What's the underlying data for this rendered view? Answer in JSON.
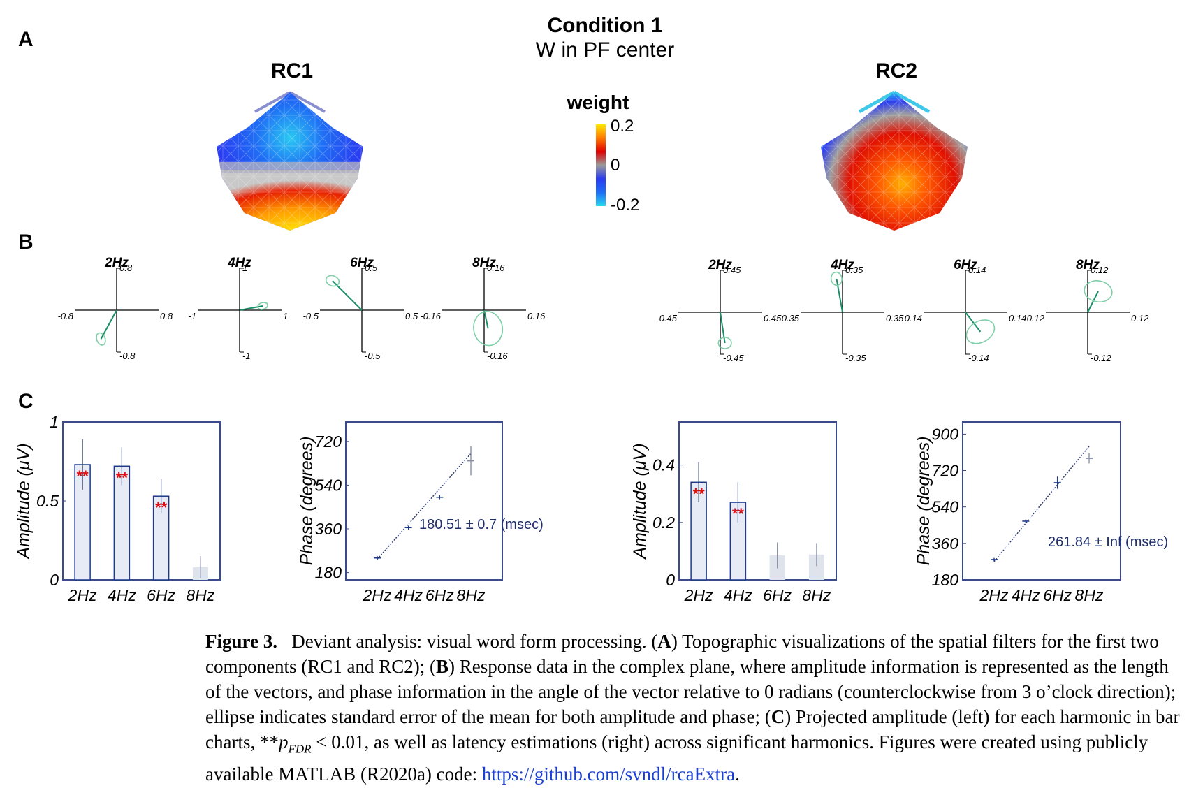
{
  "panel_labels": [
    "A",
    "B",
    "C"
  ],
  "header": {
    "title": "Condition 1",
    "subtitle": "W in PF center"
  },
  "topos": [
    {
      "label": "RC1",
      "pattern": "blue-frontal-red-occipital"
    },
    {
      "label": "RC2",
      "pattern": "red-central-blue-rim"
    }
  ],
  "colorbar": {
    "title": "weight",
    "ticks": [
      "0.2",
      "0",
      "-0.2"
    ],
    "colors": [
      "#ffe800",
      "#ff7a00",
      "#e00000",
      "#9a9a9a",
      "#2a3cf0",
      "#1f6ff5",
      "#29d8f2"
    ]
  },
  "chart_data": [
    {
      "type": "scatter",
      "group": "RC1",
      "title": "2Hz",
      "xlim": [
        -0.8,
        0.8
      ],
      "ylim": [
        -0.8,
        0.8
      ],
      "ticks": {
        "xmin": "-0.8",
        "xmax": "0.8",
        "ymax": "0.8",
        "ymin": "-0.8"
      },
      "vector": {
        "x": -0.3,
        "y": -0.55
      },
      "ellipse": {
        "rx": 0.08,
        "ry": 0.12,
        "angle": -20
      }
    },
    {
      "type": "scatter",
      "group": "RC1",
      "title": "4Hz",
      "xlim": [
        -1,
        1
      ],
      "ylim": [
        -1,
        1
      ],
      "ticks": {
        "xmin": "-1",
        "xmax": "1",
        "ymax": "1",
        "ymin": "-1"
      },
      "vector": {
        "x": 0.55,
        "y": 0.1
      },
      "ellipse": {
        "rx": 0.12,
        "ry": 0.08,
        "angle": -15
      }
    },
    {
      "type": "scatter",
      "group": "RC1",
      "title": "6Hz",
      "xlim": [
        -0.5,
        0.5
      ],
      "ylim": [
        -0.5,
        0.5
      ],
      "ticks": {
        "xmin": "-0.5",
        "xmax": "0.5",
        "ymax": "0.5",
        "ymin": "-0.5"
      },
      "vector": {
        "x": -0.35,
        "y": 0.35
      },
      "ellipse": {
        "rx": 0.08,
        "ry": 0.06,
        "angle": 20
      }
    },
    {
      "type": "scatter",
      "group": "RC1",
      "title": "8Hz",
      "xlim": [
        -0.16,
        0.16
      ],
      "ylim": [
        -0.16,
        0.16
      ],
      "ticks": {
        "xmin": "-0.16",
        "xmax": "0.16",
        "ymax": "0.16",
        "ymin": "-0.16"
      },
      "vector": {
        "x": 0.015,
        "y": -0.07
      },
      "ellipse": {
        "rx": 0.055,
        "ry": 0.065,
        "angle": -10
      }
    },
    {
      "type": "scatter",
      "group": "RC2",
      "title": "2Hz",
      "xlim": [
        -0.45,
        0.45
      ],
      "ylim": [
        -0.45,
        0.45
      ],
      "ticks": {
        "xmin": "-0.45",
        "xmax": "0.45",
        "ymax": "0.45",
        "ymin": "-0.45"
      },
      "vector": {
        "x": 0.05,
        "y": -0.33
      },
      "ellipse": {
        "rx": 0.07,
        "ry": 0.06,
        "angle": 0
      }
    },
    {
      "type": "scatter",
      "group": "RC2",
      "title": "4Hz",
      "xlim": [
        -0.35,
        0.35
      ],
      "ylim": [
        -0.35,
        0.35
      ],
      "ticks": {
        "xmin": "-0.35",
        "xmax": "0.35",
        "ymax": "0.35",
        "ymin": "-0.35"
      },
      "vector": {
        "x": -0.05,
        "y": 0.28
      },
      "ellipse": {
        "rx": 0.045,
        "ry": 0.055,
        "angle": -10
      }
    },
    {
      "type": "scatter",
      "group": "RC2",
      "title": "6Hz",
      "xlim": [
        -0.14,
        0.14
      ],
      "ylim": [
        -0.14,
        0.14
      ],
      "ticks": {
        "xmin": "-0.14",
        "xmax": "0.14",
        "ymax": "0.14",
        "ymin": "-0.14"
      },
      "vector": {
        "x": 0.05,
        "y": -0.065
      },
      "ellipse": {
        "rx": 0.05,
        "ry": 0.035,
        "angle": -30
      }
    },
    {
      "type": "scatter",
      "group": "RC2",
      "title": "8Hz",
      "xlim": [
        -0.12,
        0.12
      ],
      "ylim": [
        -0.12,
        0.12
      ],
      "ticks": {
        "xmin": "-0.12",
        "xmax": "0.12",
        "ymax": "0.12",
        "ymin": "-0.12"
      },
      "vector": {
        "x": 0.03,
        "y": 0.06
      },
      "ellipse": {
        "rx": 0.04,
        "ry": 0.03,
        "angle": 10
      }
    },
    {
      "type": "bar",
      "group": "RC1",
      "categories": [
        "2Hz",
        "4Hz",
        "6Hz",
        "8Hz"
      ],
      "values": [
        0.73,
        0.72,
        0.53,
        0.08
      ],
      "errors": [
        0.16,
        0.12,
        0.11,
        0.07
      ],
      "significant": [
        true,
        true,
        true,
        false
      ],
      "sig_marker": "**",
      "ylabel": "Amplitude (μV)",
      "ylim": [
        0,
        1
      ],
      "yticks": [
        "0",
        "0.5",
        "1"
      ],
      "ytick_values": [
        0,
        0.5,
        1
      ]
    },
    {
      "type": "line",
      "group": "RC1",
      "categories": [
        "2Hz",
        "4Hz",
        "6Hz",
        "8Hz"
      ],
      "values": [
        240,
        365,
        490,
        640
      ],
      "errors": [
        8,
        8,
        8,
        60
      ],
      "fit": [
        235,
        670
      ],
      "ylabel": "Phase (degrees)",
      "ylim": [
        150,
        800
      ],
      "yticks": [
        "180",
        "360",
        "540",
        "720"
      ],
      "ytick_values": [
        180,
        360,
        540,
        720
      ],
      "annotation": "180.51 ± 0.7 (msec)"
    },
    {
      "type": "bar",
      "group": "RC2",
      "categories": [
        "2Hz",
        "4Hz",
        "6Hz",
        "8Hz"
      ],
      "values": [
        0.34,
        0.27,
        0.085,
        0.088
      ],
      "errors": [
        0.07,
        0.07,
        0.045,
        0.04
      ],
      "significant": [
        true,
        true,
        false,
        false
      ],
      "sig_marker": "**",
      "ylabel": "Amplitude (μV)",
      "ylim": [
        0,
        0.55
      ],
      "yticks": [
        "0",
        "0.2",
        "0.4"
      ],
      "ytick_values": [
        0,
        0.2,
        0.4
      ],
      "annotation": ""
    },
    {
      "type": "line",
      "group": "RC2",
      "categories": [
        "2Hz",
        "4Hz",
        "6Hz",
        "8Hz"
      ],
      "values": [
        280,
        470,
        660,
        780
      ],
      "errors": [
        8,
        8,
        30,
        25
      ],
      "fit": [
        270,
        840
      ],
      "ylabel": "Phase (degrees)",
      "ylim": [
        180,
        960
      ],
      "yticks": [
        "180",
        "360",
        "540",
        "720",
        "900"
      ],
      "ytick_values": [
        180,
        360,
        540,
        720,
        900
      ],
      "annotation": "261.84 ± Inf (msec)"
    }
  ],
  "caption": {
    "label": "Figure 3.",
    "part1": "Deviant analysis: visual word form processing. (",
    "A": "A",
    "part2": ") Topographic visualizations of the spatial filters for the first two components (RC1 and RC2); (",
    "B": "B",
    "part3": ") Response data in the complex plane, where amplitude information is represented as the length of the vectors, and phase information in the angle of the vector relative to 0 radians (counterclockwise from 3 o’clock direction); ellipse indicates standard error of the mean for both amplitude and phase; (",
    "C": "C",
    "part4": ") Projected amplitude (left) for each harmonic in bar charts, **",
    "p": "p",
    "sub": "FDR",
    "part5": " < 0.01, as well as latency estimations (right) across significant harmonics. Figures were created using publicly available MATLAB (R2020a) code: ",
    "link": "https://github.com/svndl/rcaExtra",
    "part6": "."
  }
}
